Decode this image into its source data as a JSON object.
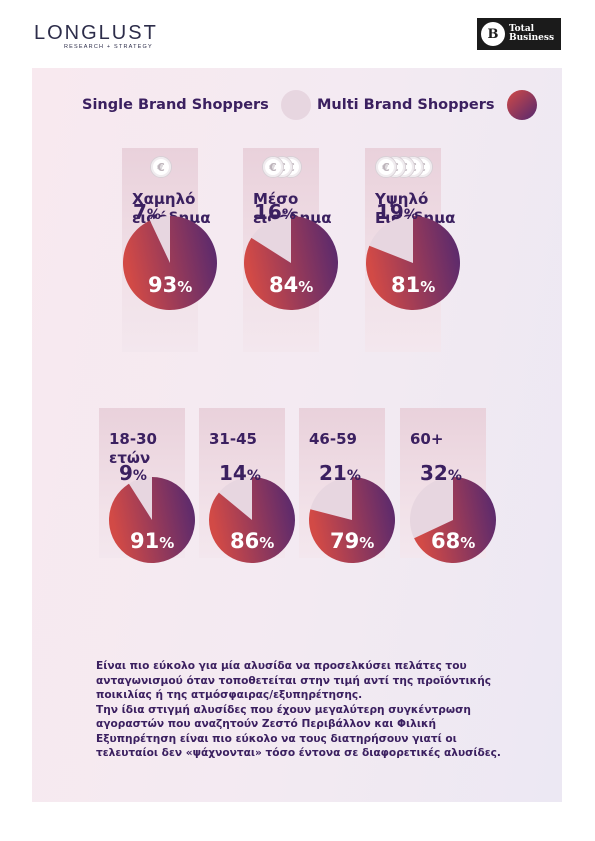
{
  "header": {
    "brand_name": "LONGLUST",
    "brand_tagline": "RESEARCH + STRATEGY",
    "partner_name_line1": "Total",
    "partner_name_line2": "Business",
    "partner_mark": "B"
  },
  "legend": {
    "single": {
      "label": "Single Brand Shoppers",
      "color": "#e7d6e0"
    },
    "multi": {
      "label": "Multi Brand Shoppers",
      "color": "#5a2a6e"
    }
  },
  "colors": {
    "multi_gradient_start": "#d24a46",
    "multi_gradient_end": "#54286f",
    "single_slice": "#e7d6e0"
  },
  "chart_data": [
    {
      "type": "pie",
      "group": "income",
      "categories": [
        {
          "label_lines": [
            "Χαμηλό",
            "εισόδημα"
          ],
          "coins": 1,
          "single": 7,
          "multi": 93
        },
        {
          "label_lines": [
            "Μέσο",
            "εισόδημα"
          ],
          "coins": 3,
          "single": 16,
          "multi": 84
        },
        {
          "label_lines": [
            "Υψηλό",
            "Εισόδημα"
          ],
          "coins": 5,
          "single": 19,
          "multi": 81
        }
      ],
      "series_names": [
        "Single Brand Shoppers",
        "Multi Brand Shoppers"
      ],
      "unit": "%"
    },
    {
      "type": "pie",
      "group": "age",
      "categories": [
        {
          "label_lines": [
            "18-30",
            "ετών"
          ],
          "single": 9,
          "multi": 91
        },
        {
          "label_lines": [
            "31-45"
          ],
          "single": 14,
          "multi": 86
        },
        {
          "label_lines": [
            "46-59"
          ],
          "single": 21,
          "multi": 79
        },
        {
          "label_lines": [
            "60+"
          ],
          "single": 32,
          "multi": 68
        }
      ],
      "series_names": [
        "Single Brand Shoppers",
        "Multi Brand Shoppers"
      ],
      "unit": "%"
    }
  ],
  "body_text": [
    "Είναι πιο εύκολο για μία αλυσίδα να προσελκύσει πελάτες του ανταγωνισμού όταν τοποθετείται στην τιμή αντί της προϊόντικής ποικιλίας ή της ατμόσφαιρας/εξυπηρέτησης.",
    "Την ίδια στιγμή αλυσίδες που έχουν μεγαλύτερη συγκέντρωση αγοραστών που αναζητούν Ζεστό Περιβάλλον και Φιλική Εξυπηρέτηση είναι πιο εύκολο να τους διατηρήσουν γιατί οι τελευταίοι δεν «ψάχνονται» τόσο έντονα σε διαφορετικές αλυσίδες."
  ],
  "icons": {
    "coin": "euro-coin-icon"
  }
}
